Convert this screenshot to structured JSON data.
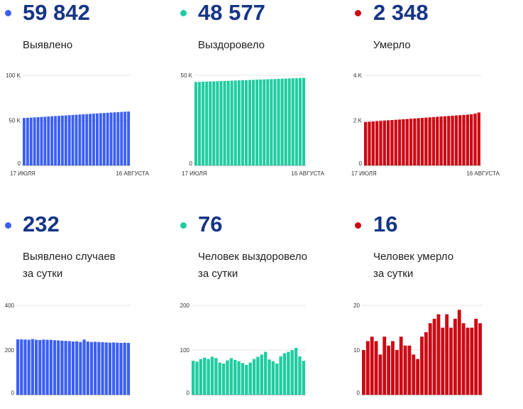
{
  "colors": {
    "detected": "#3b5ff5",
    "recovered": "#1fcca0",
    "died": "#cc0a14",
    "number": "#163586"
  },
  "panels": [
    {
      "id": "detected",
      "dot_color": "#3b5ff5",
      "value": "59 842",
      "label_lines": [
        "Выявлено"
      ]
    },
    {
      "id": "recovered",
      "dot_color": "#1fcca0",
      "value": "48 577",
      "label_lines": [
        "Выздоровело"
      ]
    },
    {
      "id": "died",
      "dot_color": "#cc0a14",
      "value": "2 348",
      "label_lines": [
        "Умерло"
      ]
    },
    {
      "id": "detected-daily",
      "dot_color": "#3b5ff5",
      "value": "232",
      "label_lines": [
        "Выявлено случаев",
        "за сутки"
      ]
    },
    {
      "id": "recovered-daily",
      "dot_color": "#1fcca0",
      "value": "76",
      "label_lines": [
        "Человек выздоровело",
        "за сутки"
      ]
    },
    {
      "id": "died-daily",
      "dot_color": "#cc0a14",
      "value": "16",
      "label_lines": [
        "Человек умерло",
        "за сутки"
      ]
    }
  ],
  "chart_data": [
    {
      "type": "bar",
      "color": "#3b5ff5",
      "grid": true,
      "ylim": [
        0,
        100000
      ],
      "yticks": [
        0,
        50000,
        100000
      ],
      "ytick_labels": [
        "0",
        "50 K",
        "100 K"
      ],
      "x_labels": [
        "17 ИЮЛЯ",
        "16 АВГУСТА"
      ],
      "values": [
        52580,
        52830,
        53070,
        53310,
        53560,
        53800,
        54050,
        54290,
        54540,
        54780,
        55030,
        55270,
        55520,
        55760,
        56010,
        56250,
        56490,
        56730,
        56970,
        57220,
        57460,
        57700,
        57940,
        58180,
        58430,
        58670,
        58910,
        59150,
        59380,
        59610,
        59842
      ]
    },
    {
      "type": "bar",
      "color": "#1fcca0",
      "grid": true,
      "ylim": [
        0,
        50000
      ],
      "yticks": [
        0,
        50000
      ],
      "ytick_labels": [
        "0",
        "50 K"
      ],
      "x_labels": [
        "17 ИЮЛЯ",
        "16 АВГУСТА"
      ],
      "values": [
        46260,
        46340,
        46420,
        46490,
        46570,
        46640,
        46720,
        46800,
        46870,
        46950,
        47030,
        47100,
        47180,
        47260,
        47330,
        47410,
        47490,
        47560,
        47640,
        47710,
        47790,
        47870,
        47940,
        48020,
        48100,
        48170,
        48250,
        48330,
        48410,
        48500,
        48577
      ]
    },
    {
      "type": "bar",
      "color": "#cc0a14",
      "grid": true,
      "ylim": [
        0,
        4000
      ],
      "yticks": [
        0,
        2000,
        4000
      ],
      "ytick_labels": [
        "0",
        "2 K",
        "4 K"
      ],
      "x_labels": [
        "17 ИЮЛЯ",
        "16 АВГУСТА"
      ],
      "values": [
        1930,
        1942,
        1954,
        1966,
        1978,
        1990,
        2002,
        2014,
        2026,
        2038,
        2050,
        2062,
        2074,
        2086,
        2098,
        2110,
        2122,
        2134,
        2146,
        2158,
        2170,
        2182,
        2194,
        2206,
        2218,
        2230,
        2242,
        2254,
        2270,
        2300,
        2348
      ]
    },
    {
      "type": "bar",
      "color": "#3b5ff5",
      "grid": true,
      "ylim": [
        0,
        400
      ],
      "yticks": [
        0,
        200,
        400
      ],
      "ytick_labels": [
        "0",
        "200",
        "400"
      ],
      "x_labels": [],
      "values": [
        248,
        248,
        247,
        246,
        249,
        246,
        245,
        247,
        246,
        246,
        244,
        243,
        242,
        241,
        240,
        238,
        239,
        236,
        247,
        238,
        236,
        237,
        236,
        235,
        234,
        233,
        234,
        233,
        232,
        233,
        232
      ]
    },
    {
      "type": "bar",
      "color": "#1fcca0",
      "grid": true,
      "ylim": [
        0,
        200
      ],
      "yticks": [
        0,
        100,
        200
      ],
      "ytick_labels": [
        "0",
        "100",
        "200"
      ],
      "x_labels": [],
      "values": [
        76,
        74,
        80,
        83,
        80,
        85,
        82,
        72,
        70,
        77,
        82,
        78,
        75,
        71,
        67,
        72,
        80,
        85,
        90,
        96,
        79,
        75,
        70,
        86,
        93,
        96,
        100,
        105,
        86,
        76
      ]
    },
    {
      "type": "bar",
      "color": "#cc0a14",
      "grid": true,
      "ylim": [
        0,
        20
      ],
      "yticks": [
        0,
        10,
        20
      ],
      "ytick_labels": [
        "0",
        "10",
        "20"
      ],
      "x_labels": [],
      "values": [
        10,
        12,
        13,
        12,
        9,
        13,
        11,
        12,
        10,
        13,
        11,
        11,
        9,
        8,
        13,
        14,
        16,
        17,
        18,
        15,
        18,
        15,
        17,
        19,
        16,
        15,
        15,
        17,
        16
      ]
    }
  ]
}
